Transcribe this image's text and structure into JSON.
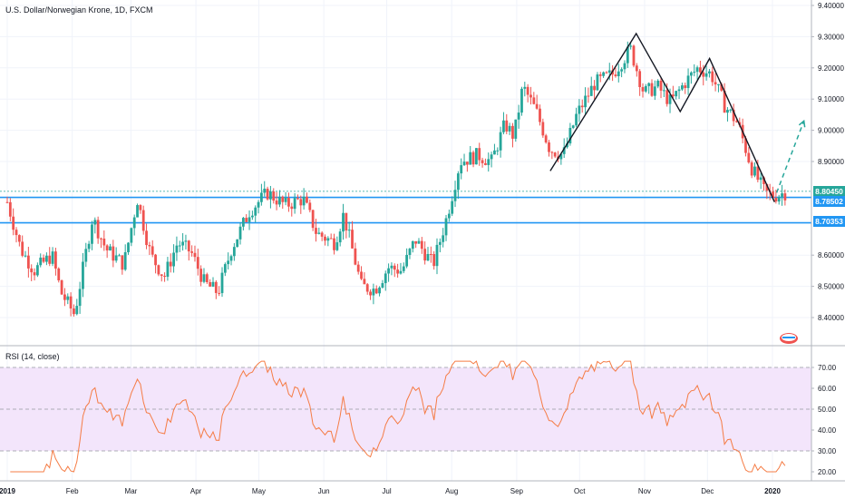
{
  "chart_data": {
    "type": "candlestick",
    "title": "U.S. Dollar/Norwegian Krone, 1D, FXCM",
    "price_axis": {
      "ticks": [
        "9.40000",
        "9.30000",
        "9.20000",
        "9.10000",
        "9.00000",
        "8.90000",
        "8.60000",
        "8.50000",
        "8.40000"
      ],
      "ylim": [
        8.33,
        9.4
      ]
    },
    "time_axis": {
      "labels": [
        "2019",
        "Feb",
        "Mar",
        "Apr",
        "May",
        "Jun",
        "Jul",
        "Aug",
        "Sep",
        "Oct",
        "Nov",
        "Dec",
        "2020"
      ]
    },
    "horizontal_levels": [
      {
        "value": 8.8045,
        "label": "8.80450",
        "color": "#26a69a"
      },
      {
        "value": 8.78502,
        "label": "8.78502",
        "color": "#2196f3"
      },
      {
        "value": 8.70353,
        "label": "8.70353",
        "color": "#2196f3"
      }
    ],
    "pattern_points": [
      {
        "date": "2019-09-17",
        "price": 8.87
      },
      {
        "date": "2019-10-28",
        "price": 9.31
      },
      {
        "date": "2019-11-18",
        "price": 9.06
      },
      {
        "date": "2019-12-02",
        "price": 9.23
      },
      {
        "date": "2020-01-02",
        "price": 8.77
      }
    ],
    "projection": [
      {
        "date": "2020-01-03",
        "price": 8.8
      },
      {
        "date": "2020-01-16",
        "price": 9.03
      }
    ],
    "rsi": {
      "title": "RSI (14, close)",
      "ticks": [
        "70.00",
        "60.00",
        "50.00",
        "40.00",
        "30.00",
        "20.00"
      ],
      "band": [
        30,
        70
      ],
      "color": "#f57c45",
      "band_color": "#f3e5fb"
    },
    "up_color": "#26a69a",
    "down_color": "#ef5350"
  }
}
